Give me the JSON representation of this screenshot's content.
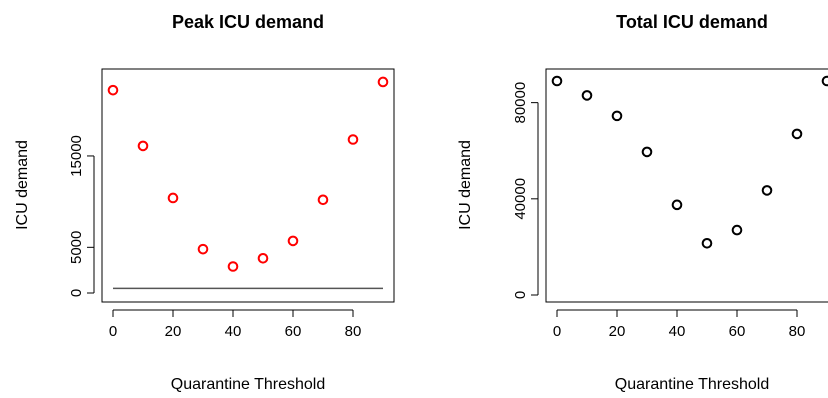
{
  "chart_data": [
    {
      "type": "scatter",
      "title": "Peak ICU demand",
      "xlabel": "Quarantine Threshold",
      "ylabel": "ICU demand",
      "xlim": [
        0,
        90
      ],
      "ylim": [
        0,
        22000
      ],
      "xticks": [
        0,
        20,
        40,
        60,
        80
      ],
      "yticks": [
        0,
        5000,
        15000
      ],
      "grid": false,
      "point_color": "#ff0000",
      "series": [
        {
          "x": [
            0,
            10,
            20,
            30,
            40,
            50,
            60,
            70,
            80,
            90
          ],
          "y": [
            22200,
            16100,
            10400,
            4800,
            2900,
            3800,
            5700,
            10200,
            16800,
            23100
          ]
        }
      ],
      "reference_line": {
        "y": 500,
        "x": [
          0,
          90
        ],
        "color": "#555555"
      }
    },
    {
      "type": "scatter",
      "title": "Total ICU demand",
      "xlabel": "Quarantine Threshold",
      "ylabel": "ICU demand",
      "xlim": [
        0,
        90
      ],
      "ylim": [
        0,
        89000
      ],
      "xticks": [
        0,
        20,
        40,
        60,
        80
      ],
      "yticks": [
        0,
        40000,
        80000
      ],
      "grid": false,
      "point_color": "#000000",
      "series": [
        {
          "x": [
            0,
            10,
            20,
            30,
            40,
            50,
            60,
            70,
            80,
            90
          ],
          "y": [
            89000,
            83000,
            74500,
            59500,
            37500,
            21500,
            27000,
            43500,
            67000,
            89000
          ]
        }
      ]
    }
  ]
}
